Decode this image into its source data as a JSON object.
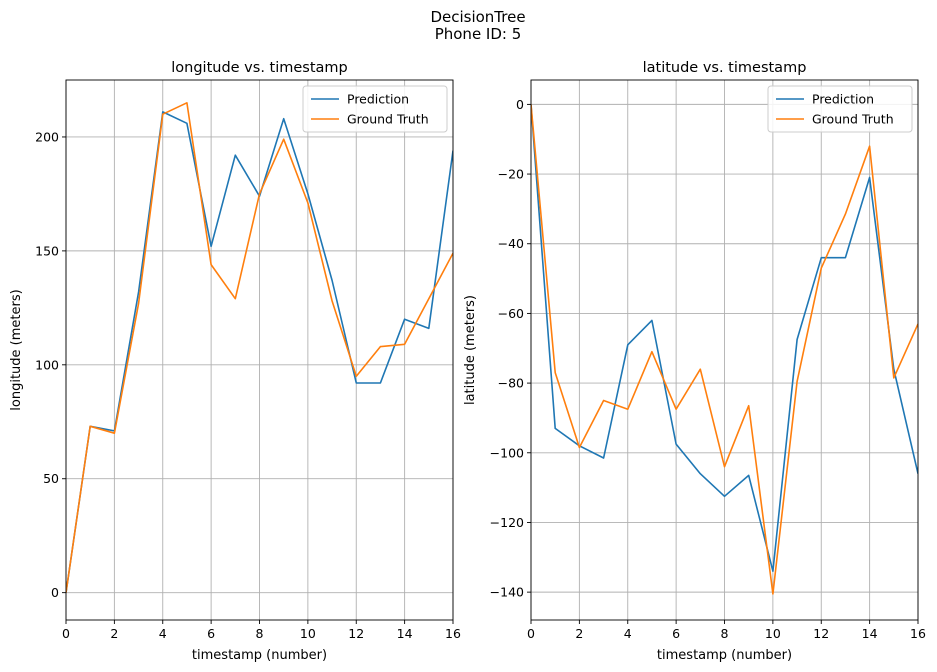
{
  "figure": {
    "title_line1": "DecisionTree",
    "title_line2": "Phone ID: 5"
  },
  "colors": {
    "prediction": "#1f77b4",
    "ground_truth": "#ff7f0e",
    "grid": "#b0b0b0",
    "axes": "#000000"
  },
  "chart_data": [
    {
      "type": "line",
      "title": "longitude vs. timestamp",
      "xlabel": "timestamp (number)",
      "ylabel": "longitude (meters)",
      "xlim": [
        0,
        16
      ],
      "ylim": [
        -12,
        225
      ],
      "xticks": [
        0,
        2,
        4,
        6,
        8,
        10,
        12,
        14,
        16
      ],
      "yticks": [
        0,
        50,
        100,
        150,
        200
      ],
      "grid": true,
      "legend_position": "top-right",
      "series": [
        {
          "name": "Prediction",
          "color_key": "prediction",
          "x": [
            0,
            1,
            2,
            3,
            4,
            5,
            6,
            7,
            8,
            9,
            10,
            11,
            12,
            13,
            14,
            15,
            16
          ],
          "y": [
            0,
            73,
            71,
            132,
            211,
            206,
            152,
            192,
            174,
            208,
            175,
            137,
            92,
            92,
            120,
            116,
            194
          ]
        },
        {
          "name": "Ground Truth",
          "color_key": "ground_truth",
          "x": [
            0,
            1,
            2,
            3,
            4,
            5,
            6,
            7,
            8,
            9,
            10,
            11,
            12,
            13,
            14,
            15,
            16
          ],
          "y": [
            0,
            73,
            70,
            127,
            210,
            215,
            144,
            129,
            175,
            199,
            171,
            128,
            95,
            108,
            109,
            129,
            149
          ]
        }
      ]
    },
    {
      "type": "line",
      "title": "latitude vs. timestamp",
      "xlabel": "timestamp (number)",
      "ylabel": "latitude (meters)",
      "xlim": [
        0,
        16
      ],
      "ylim": [
        -148,
        7
      ],
      "xticks": [
        0,
        2,
        4,
        6,
        8,
        10,
        12,
        14,
        16
      ],
      "yticks": [
        0,
        -20,
        -40,
        -60,
        -80,
        -100,
        -120,
        -140
      ],
      "grid": true,
      "legend_position": "top-right",
      "series": [
        {
          "name": "Prediction",
          "color_key": "prediction",
          "x": [
            0,
            1,
            2,
            3,
            4,
            5,
            6,
            7,
            8,
            9,
            10,
            11,
            12,
            13,
            14,
            15,
            16
          ],
          "y": [
            0,
            -93,
            -98,
            -101.5,
            -69,
            -62,
            -97.5,
            -106,
            -112.5,
            -106.5,
            -134,
            -67.5,
            -44,
            -44,
            -21,
            -76,
            -106
          ]
        },
        {
          "name": "Ground Truth",
          "color_key": "ground_truth",
          "x": [
            0,
            1,
            2,
            3,
            4,
            5,
            6,
            7,
            8,
            9,
            10,
            11,
            12,
            13,
            14,
            15,
            16
          ],
          "y": [
            0,
            -77,
            -98.5,
            -85,
            -87.5,
            -71,
            -87.5,
            -76,
            -104,
            -86.5,
            -140.5,
            -79.5,
            -47,
            -31.5,
            -12,
            -78.5,
            -63
          ]
        }
      ]
    }
  ]
}
